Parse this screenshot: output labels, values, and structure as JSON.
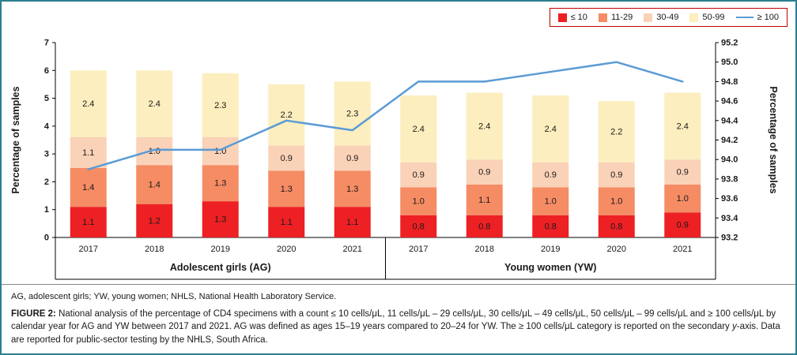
{
  "figure": {
    "abbreviations": "AG, adolescent girls; YW, young women; NHLS, National Health Laboratory Service.",
    "caption_label": "FIGURE 2:",
    "caption_part1": "National analysis of the percentage of CD4 specimens with a count ≤ 10 cells/μL, 11 cells/μL – 29 cells/μL, 30 cells/μL – 49 cells/μL, 50 cells/μL – 99 cells/μL and ≥ 100 cells/μL by calendar year for AG and YW between 2017 and 2021. AG was defined as ages 15–19 years compared to 20–24 for YW. The ≥ 100 cells/μL category is reported on the secondary ",
    "caption_italic": "y",
    "caption_part2": "-axis. Data are reported for public-sector testing by the NHLS, South Africa."
  },
  "chart_data": {
    "type": "bar",
    "stacked": true,
    "grid": false,
    "legend_position": "top-right",
    "groups": [
      {
        "label": "Adolescent girls (AG)",
        "categories": [
          "2017",
          "2018",
          "2019",
          "2020",
          "2021"
        ]
      },
      {
        "label": "Young women (YW)",
        "categories": [
          "2017",
          "2018",
          "2019",
          "2020",
          "2021"
        ]
      }
    ],
    "series": [
      {
        "name": "≤ 10",
        "color": "#ED2024",
        "values": [
          1.1,
          1.2,
          1.3,
          1.1,
          1.1,
          0.8,
          0.8,
          0.8,
          0.8,
          0.9
        ]
      },
      {
        "name": "11-29",
        "color": "#F58C64",
        "values": [
          1.4,
          1.4,
          1.3,
          1.3,
          1.3,
          1.0,
          1.1,
          1.0,
          1.0,
          1.0
        ]
      },
      {
        "name": "30-49",
        "color": "#FAD2B8",
        "values": [
          1.1,
          1.0,
          1.0,
          0.9,
          0.9,
          0.9,
          0.9,
          0.9,
          0.9,
          0.9
        ]
      },
      {
        "name": "50-99",
        "color": "#FCEEBE",
        "values": [
          2.4,
          2.4,
          2.3,
          2.2,
          2.3,
          2.4,
          2.4,
          2.4,
          2.2,
          2.4
        ]
      }
    ],
    "line_series": {
      "name": "≥ 100",
      "color": "#5B9BD5",
      "axis": "right",
      "values": [
        93.9,
        94.1,
        94.1,
        94.4,
        94.3,
        94.8,
        94.8,
        94.9,
        95.0,
        94.8
      ]
    },
    "left_axis": {
      "title": "Percentage of samples",
      "min": 0,
      "max": 7,
      "step": 1,
      "tick_labels": [
        "0",
        "1",
        "2",
        "3",
        "4",
        "5",
        "6",
        "7"
      ]
    },
    "right_axis": {
      "title": "Percentage of samples",
      "min": 93.2,
      "max": 95.2,
      "step": 0.2,
      "tick_labels": [
        "93.2",
        "93.4",
        "93.6",
        "93.8",
        "94.0",
        "94.2",
        "94.4",
        "94.6",
        "94.8",
        "95.0",
        "95.2"
      ]
    }
  }
}
